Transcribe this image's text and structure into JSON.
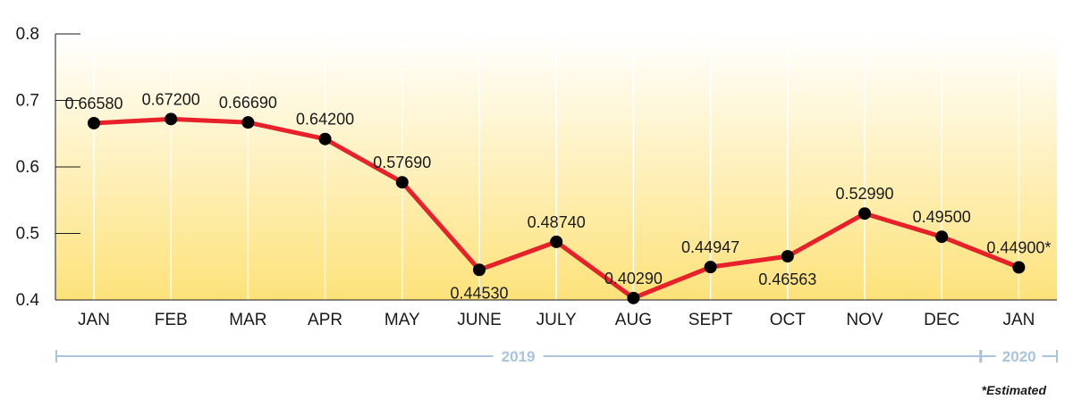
{
  "chart_data": {
    "type": "line",
    "title": "",
    "xlabel": "",
    "ylabel": "",
    "categories": [
      "JAN",
      "FEB",
      "MAR",
      "APR",
      "MAY",
      "JUNE",
      "JULY",
      "AUG",
      "SEPT",
      "OCT",
      "NOV",
      "DEC",
      "JAN"
    ],
    "series": [
      {
        "values": [
          0.6658,
          0.672,
          0.6669,
          0.642,
          0.5769,
          0.4453,
          0.4874,
          0.4029,
          0.44947,
          0.46563,
          0.5299,
          0.495,
          0.449
        ],
        "labels": [
          "0.66580",
          "0.67200",
          "0.66690",
          "0.64200",
          "0.57690",
          "0.44530",
          "0.48740",
          "0.40290",
          "0.44947",
          "0.46563",
          "0.52990",
          "0.49500",
          "0.44900*"
        ],
        "label_position": [
          "above",
          "above",
          "above",
          "above",
          "above",
          "below",
          "above",
          "above",
          "above",
          "below",
          "above",
          "above",
          "above"
        ]
      }
    ],
    "ylim": [
      0.4,
      0.8
    ],
    "yticks": [
      "0.4",
      "0.5",
      "0.6",
      "0.7",
      "0.8"
    ],
    "grid": "vertical",
    "background": "gradient white to yellow",
    "year_groups": [
      {
        "label": "2019",
        "span": [
          0,
          11
        ]
      },
      {
        "label": "2020",
        "span": [
          12,
          12
        ]
      }
    ],
    "footnote": "*Estimated",
    "colors": {
      "line": "#e8202a",
      "marker": "#000000",
      "year_bracket": "#a9c4dc",
      "gradient_top": "#ffffff",
      "gradient_bottom": "#fde27a"
    }
  }
}
